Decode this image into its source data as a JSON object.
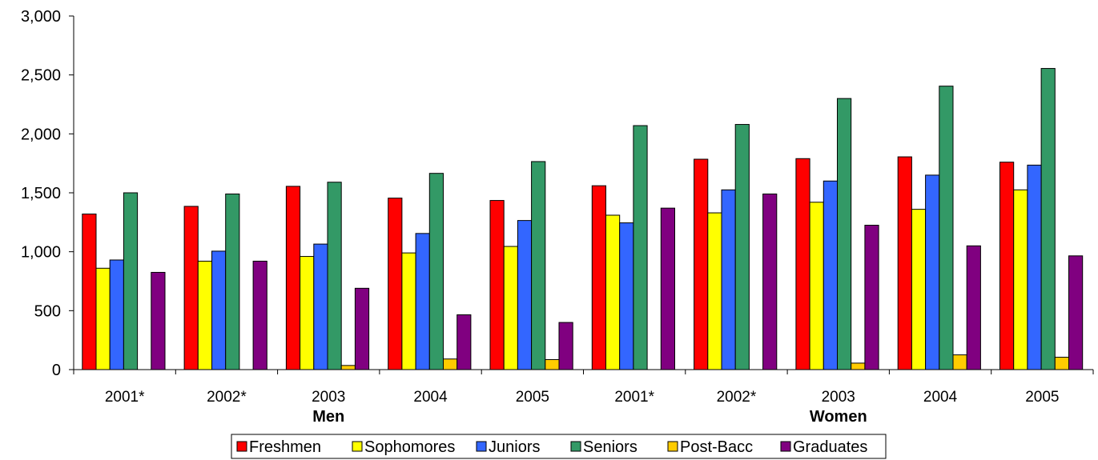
{
  "chart_data": {
    "type": "bar",
    "categories": [
      "2001*",
      "2002*",
      "2003",
      "2004",
      "2005",
      "2001*",
      "2002*",
      "2003",
      "2004",
      "2005"
    ],
    "groups": [
      {
        "label": "Men",
        "categories": [
          0,
          1,
          2,
          3,
          4
        ]
      },
      {
        "label": "Women",
        "categories": [
          5,
          6,
          7,
          8,
          9
        ]
      }
    ],
    "series": [
      {
        "name": "Freshmen",
        "color": "#ff0000",
        "values": [
          1320,
          1385,
          1555,
          1455,
          1435,
          1560,
          1785,
          1790,
          1805,
          1760
        ]
      },
      {
        "name": "Sophomores",
        "color": "#ffff00",
        "values": [
          860,
          920,
          960,
          990,
          1045,
          1310,
          1330,
          1420,
          1360,
          1525
        ]
      },
      {
        "name": "Juniors",
        "color": "#3366ff",
        "values": [
          930,
          1005,
          1065,
          1155,
          1265,
          1245,
          1525,
          1600,
          1650,
          1735
        ]
      },
      {
        "name": "Seniors",
        "color": "#339966",
        "values": [
          1500,
          1490,
          1590,
          1665,
          1765,
          2070,
          2080,
          2300,
          2405,
          2555
        ]
      },
      {
        "name": "Post-Bacc",
        "color": "#ffcc00",
        "values": [
          0,
          0,
          35,
          90,
          85,
          0,
          0,
          55,
          125,
          105
        ]
      },
      {
        "name": "Graduates",
        "color": "#800080",
        "values": [
          825,
          920,
          690,
          465,
          400,
          1370,
          1490,
          1225,
          1050,
          965
        ]
      }
    ],
    "ylim": [
      0,
      3000
    ],
    "yticks": [
      0,
      500,
      1000,
      1500,
      2000,
      2500,
      3000
    ],
    "ytick_labels": [
      "0",
      "500",
      "1,000",
      "1,500",
      "2,000",
      "2,500",
      "3,000"
    ],
    "title": "",
    "xlabel": "",
    "ylabel": "",
    "grid": false,
    "legend": "bottom"
  }
}
